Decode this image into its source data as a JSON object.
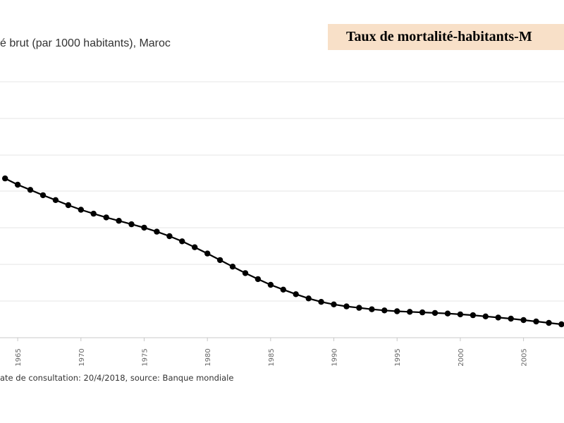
{
  "chart_data": {
    "type": "line",
    "title": "Taux de mortalité-habitants-M",
    "subtitle": "é brut (par 1000 habitants), Maroc",
    "footer": "ate de consultation: 20/4/2018, source: Banque mondiale",
    "x_tick_labels": [
      "1965",
      "1970",
      "1975",
      "1980",
      "1985",
      "1990",
      "1995",
      "2000",
      "2005"
    ],
    "xlim": [
      1963.6,
      2008.2
    ],
    "ylim": [
      0,
      9
    ],
    "grid": true,
    "line_color": "#000000",
    "series": [
      {
        "name": "",
        "x": [
          1964,
          1965,
          1966,
          1967,
          1968,
          1969,
          1970,
          1971,
          1972,
          1973,
          1974,
          1975,
          1976,
          1977,
          1978,
          1979,
          1980,
          1981,
          1982,
          1983,
          1984,
          1985,
          1986,
          1987,
          1988,
          1989,
          1990,
          1991,
          1992,
          1993,
          1994,
          1995,
          1996,
          1997,
          1998,
          1999,
          2000,
          2001,
          2002,
          2003,
          2004,
          2005,
          2006,
          2007,
          2008
        ],
        "y": [
          5.6,
          5.38,
          5.2,
          5.01,
          4.84,
          4.66,
          4.5,
          4.36,
          4.23,
          4.11,
          3.99,
          3.87,
          3.73,
          3.57,
          3.39,
          3.18,
          2.96,
          2.73,
          2.5,
          2.27,
          2.06,
          1.86,
          1.69,
          1.53,
          1.38,
          1.26,
          1.17,
          1.1,
          1.05,
          1.0,
          0.96,
          0.93,
          0.91,
          0.89,
          0.87,
          0.85,
          0.82,
          0.79,
          0.75,
          0.71,
          0.67,
          0.62,
          0.57,
          0.52,
          0.47
        ]
      }
    ]
  }
}
